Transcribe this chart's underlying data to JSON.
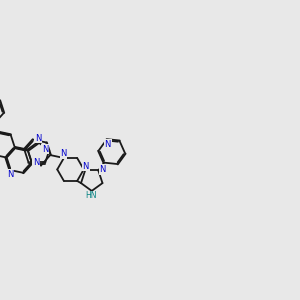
{
  "bg_color": "#e8e8e8",
  "bond_color": "#1a1a1a",
  "nitrogen_color": "#0000cc",
  "nitrogen_h_color": "#008080",
  "lw": 1.3,
  "dg": 0.025,
  "fig_w": 3.0,
  "fig_h": 3.0,
  "dpi": 100,
  "xlim": [
    0.0,
    9.5
  ],
  "ylim": [
    1.5,
    7.5
  ]
}
